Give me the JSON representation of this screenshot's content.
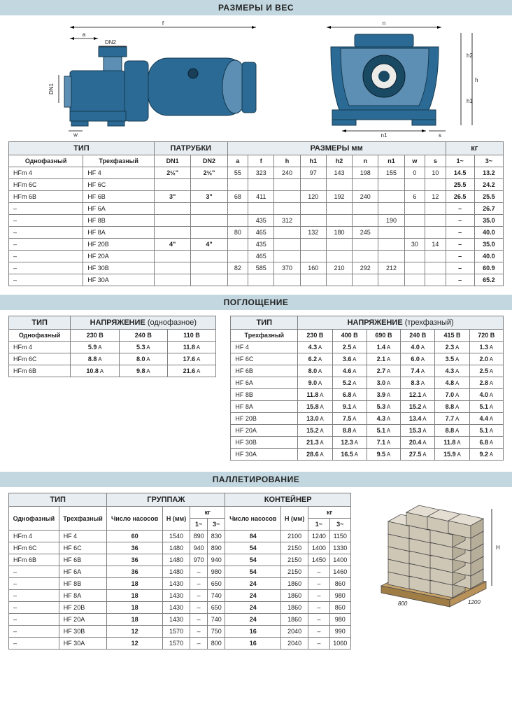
{
  "sections": {
    "dims": "РАЗМЕРЫ И ВЕС",
    "absorption": "ПОГЛОЩЕНИЕ",
    "palletizing": "ПАЛЛЕТИРОВАНИЕ"
  },
  "colors": {
    "header_bg": "#c3d7e0",
    "pump_body": "#2b6a95",
    "pump_light": "#5c8fb3",
    "pump_dark": "#1a4963",
    "border": "#808080"
  },
  "dim_labels": {
    "a": "a",
    "f": "f",
    "h": "h",
    "h1": "h1",
    "h2": "h2",
    "n": "n",
    "n1": "n1",
    "w": "w",
    "s": "s",
    "DN1": "DN1",
    "DN2": "DN2"
  },
  "dim_table": {
    "groups": {
      "type": "ТИП",
      "ports": "ПАТРУБКИ",
      "dims": "РАЗМЕРЫ мм",
      "kg": "кг"
    },
    "cols_type": [
      "Однофазный",
      "Трехфазный"
    ],
    "cols_ports": [
      "DN1",
      "DN2"
    ],
    "cols_dims": [
      "a",
      "f",
      "h",
      "h1",
      "h2",
      "n",
      "n1",
      "w",
      "s"
    ],
    "cols_kg": [
      "1~",
      "3~"
    ],
    "rows": [
      {
        "m": "HFm 4",
        "t": "HF 4",
        "dn1": "2½\"",
        "dn2": "2½\"",
        "a": "55",
        "f": "323",
        "h": "240",
        "h1": "97",
        "h2": "143",
        "n": "198",
        "n1": "155",
        "w": "0",
        "s": "10",
        "kg1": "14.5",
        "kg3": "13.2"
      },
      {
        "m": "HFm 6C",
        "t": "HF 6C",
        "dn1": "",
        "dn2": "",
        "a": "",
        "f": "",
        "h": "",
        "h1": "",
        "h2": "",
        "n": "",
        "n1": "",
        "w": "",
        "s": "",
        "kg1": "25.5",
        "kg3": "24.2"
      },
      {
        "m": "HFm 6B",
        "t": "HF 6B",
        "dn1": "3\"",
        "dn2": "3\"",
        "a": "68",
        "f": "411",
        "h": "",
        "h1": "120",
        "h2": "192",
        "n": "240",
        "n1": "",
        "w": "6",
        "s": "12",
        "kg1": "26.5",
        "kg3": "25.5"
      },
      {
        "m": "–",
        "t": "HF 6A",
        "dn1": "",
        "dn2": "",
        "a": "",
        "f": "",
        "h": "",
        "h1": "",
        "h2": "",
        "n": "",
        "n1": "",
        "w": "",
        "s": "",
        "kg1": "–",
        "kg3": "26.7"
      },
      {
        "m": "–",
        "t": "HF 8B",
        "dn1": "",
        "dn2": "",
        "a": "",
        "f": "435",
        "h": "312",
        "h1": "",
        "h2": "",
        "n": "",
        "n1": "190",
        "w": "",
        "s": "",
        "kg1": "–",
        "kg3": "35.0"
      },
      {
        "m": "–",
        "t": "HF 8A",
        "dn1": "",
        "dn2": "",
        "a": "80",
        "f": "465",
        "h": "",
        "h1": "132",
        "h2": "180",
        "n": "245",
        "n1": "",
        "w": "",
        "s": "",
        "kg1": "–",
        "kg3": "40.0"
      },
      {
        "m": "–",
        "t": "HF 20B",
        "dn1": "4\"",
        "dn2": "4\"",
        "a": "",
        "f": "435",
        "h": "",
        "h1": "",
        "h2": "",
        "n": "",
        "n1": "",
        "w": "30",
        "s": "14",
        "kg1": "–",
        "kg3": "35.0"
      },
      {
        "m": "–",
        "t": "HF 20A",
        "dn1": "",
        "dn2": "",
        "a": "",
        "f": "465",
        "h": "",
        "h1": "",
        "h2": "",
        "n": "",
        "n1": "",
        "w": "",
        "s": "",
        "kg1": "–",
        "kg3": "40.0"
      },
      {
        "m": "–",
        "t": "HF 30B",
        "dn1": "",
        "dn2": "",
        "a": "82",
        "f": "585",
        "h": "370",
        "h1": "160",
        "h2": "210",
        "n": "292",
        "n1": "212",
        "w": "",
        "s": "",
        "kg1": "–",
        "kg3": "60.9"
      },
      {
        "m": "–",
        "t": "HF 30A",
        "dn1": "",
        "dn2": "",
        "a": "",
        "f": "",
        "h": "",
        "h1": "",
        "h2": "",
        "n": "",
        "n1": "",
        "w": "",
        "s": "",
        "kg1": "–",
        "kg3": "65.2"
      }
    ]
  },
  "abs_mono": {
    "title_type": "ТИП",
    "title_volt_prefix": "НАПРЯЖЕН",
    "title_volt_suffix": "ИЕ",
    "title_volt_note": "(однофазное)",
    "type_col": "Однофазный",
    "cols": [
      "230 В",
      "240 В",
      "110 В"
    ],
    "rows": [
      {
        "t": "HFm 4",
        "v": [
          "5.9",
          "5.3",
          "11.8"
        ]
      },
      {
        "t": "HFm 6C",
        "v": [
          "8.8",
          "8.0",
          "17.6"
        ]
      },
      {
        "t": "HFm 6B",
        "v": [
          "10.8",
          "9.8",
          "21.6"
        ]
      }
    ],
    "unit": "A"
  },
  "abs_three": {
    "title_type": "ТИП",
    "title_volt_prefix": "НАПРЯЖЕН",
    "title_volt_suffix": "ИЕ",
    "title_volt_note": "(трехфазный)",
    "type_col": "Трехфазный",
    "cols": [
      "230 В",
      "400 В",
      "690 В",
      "240 В",
      "415 В",
      "720 В"
    ],
    "rows": [
      {
        "t": "HF 4",
        "v": [
          "4.3",
          "2.5",
          "1.4",
          "4.0",
          "2.3",
          "1.3"
        ]
      },
      {
        "t": "HF 6C",
        "v": [
          "6.2",
          "3.6",
          "2.1",
          "6.0",
          "3.5",
          "2.0"
        ]
      },
      {
        "t": "HF 6B",
        "v": [
          "8.0",
          "4.6",
          "2.7",
          "7.4",
          "4.3",
          "2.5"
        ]
      },
      {
        "t": "HF 6A",
        "v": [
          "9.0",
          "5.2",
          "3.0",
          "8.3",
          "4.8",
          "2.8"
        ]
      },
      {
        "t": "HF 8B",
        "v": [
          "11.8",
          "6.8",
          "3.9",
          "12.1",
          "7.0",
          "4.0"
        ]
      },
      {
        "t": "HF 8A",
        "v": [
          "15.8",
          "9.1",
          "5.3",
          "15.2",
          "8.8",
          "5.1"
        ]
      },
      {
        "t": "HF 20B",
        "v": [
          "13.0",
          "7.5",
          "4.3",
          "13.4",
          "7.7",
          "4.4"
        ]
      },
      {
        "t": "HF 20A",
        "v": [
          "15.2",
          "8.8",
          "5.1",
          "15.3",
          "8.8",
          "5.1"
        ]
      },
      {
        "t": "HF 30B",
        "v": [
          "21.3",
          "12.3",
          "7.1",
          "20.4",
          "11.8",
          "6.8"
        ]
      },
      {
        "t": "HF 30A",
        "v": [
          "28.6",
          "16.5",
          "9.5",
          "27.5",
          "15.9",
          "9.2"
        ]
      }
    ],
    "unit": "A"
  },
  "pallet": {
    "groups": {
      "type": "ТИП",
      "group": "ГРУППАЖ",
      "container": "КОНТЕЙНЕР"
    },
    "cols_type": [
      "Однофазный",
      "Трехфазный"
    ],
    "sub_cols": [
      "Число насосов",
      "H (мм)",
      "кг"
    ],
    "kg_sub": [
      "1~",
      "3~"
    ],
    "rows": [
      {
        "m": "HFm 4",
        "t": "HF 4",
        "g": [
          "60",
          "1540",
          "890",
          "830"
        ],
        "c": [
          "84",
          "2100",
          "1240",
          "1150"
        ]
      },
      {
        "m": "HFm 6C",
        "t": "HF 6C",
        "g": [
          "36",
          "1480",
          "940",
          "890"
        ],
        "c": [
          "54",
          "2150",
          "1400",
          "1330"
        ]
      },
      {
        "m": "HFm 6B",
        "t": "HF 6B",
        "g": [
          "36",
          "1480",
          "970",
          "940"
        ],
        "c": [
          "54",
          "2150",
          "1450",
          "1400"
        ]
      },
      {
        "m": "–",
        "t": "HF 6A",
        "g": [
          "36",
          "1480",
          "–",
          "980"
        ],
        "c": [
          "54",
          "2150",
          "–",
          "1460"
        ]
      },
      {
        "m": "–",
        "t": "HF 8B",
        "g": [
          "18",
          "1430",
          "–",
          "650"
        ],
        "c": [
          "24",
          "1860",
          "–",
          "860"
        ]
      },
      {
        "m": "–",
        "t": "HF 8A",
        "g": [
          "18",
          "1430",
          "–",
          "740"
        ],
        "c": [
          "24",
          "1860",
          "–",
          "980"
        ]
      },
      {
        "m": "–",
        "t": "HF 20B",
        "g": [
          "18",
          "1430",
          "–",
          "650"
        ],
        "c": [
          "24",
          "1860",
          "–",
          "860"
        ]
      },
      {
        "m": "–",
        "t": "HF 20A",
        "g": [
          "18",
          "1430",
          "–",
          "740"
        ],
        "c": [
          "24",
          "1860",
          "–",
          "980"
        ]
      },
      {
        "m": "–",
        "t": "HF 30B",
        "g": [
          "12",
          "1570",
          "–",
          "750"
        ],
        "c": [
          "16",
          "2040",
          "–",
          "990"
        ]
      },
      {
        "m": "–",
        "t": "HF 30A",
        "g": [
          "12",
          "1570",
          "–",
          "800"
        ],
        "c": [
          "16",
          "2040",
          "–",
          "1060"
        ]
      }
    ],
    "pallet_dims": {
      "w": "800",
      "l": "1200",
      "h": "H"
    }
  }
}
